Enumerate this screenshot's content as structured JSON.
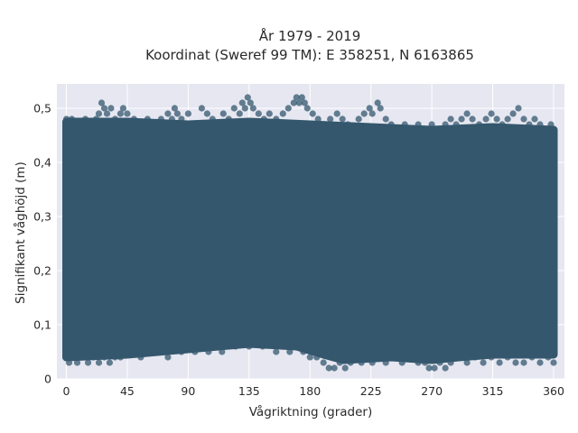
{
  "chart_data": {
    "type": "scatter",
    "title_line1": "År 1979 - 2019",
    "title_line2": "Koordinat (Sweref 99 TM): E 358251, N 6163865",
    "xlabel": "Vågriktning (grader)",
    "ylabel": "Signifikant våghöjd (m)",
    "xlim": [
      -7,
      368
    ],
    "ylim": [
      0,
      0.545
    ],
    "xticks": [
      0,
      45,
      90,
      135,
      180,
      225,
      270,
      315,
      360
    ],
    "xtick_labels": [
      "0",
      "45",
      "90",
      "135",
      "180",
      "225",
      "270",
      "315",
      "360"
    ],
    "yticks": [
      0,
      0.1,
      0.2,
      0.3,
      0.4,
      0.5
    ],
    "ytick_labels": [
      "0",
      "0,1",
      "0,2",
      "0,3",
      "0,4",
      "0,5"
    ],
    "grid": true,
    "colors": {
      "background": "#e6e7f1",
      "grid": "#ffffff",
      "marker": "#34576d"
    },
    "series": [
      {
        "marker_opacity": 0.75,
        "points": [
          [
            0,
            0.48
          ],
          [
            2,
            0.47
          ],
          [
            4,
            0.48
          ],
          [
            6,
            0.46
          ],
          [
            10,
            0.47
          ],
          [
            14,
            0.48
          ],
          [
            18,
            0.47
          ],
          [
            22,
            0.48
          ],
          [
            24,
            0.49
          ],
          [
            26,
            0.51
          ],
          [
            28,
            0.5
          ],
          [
            30,
            0.49
          ],
          [
            33,
            0.5
          ],
          [
            36,
            0.48
          ],
          [
            40,
            0.49
          ],
          [
            42,
            0.5
          ],
          [
            45,
            0.49
          ],
          [
            50,
            0.48
          ],
          [
            55,
            0.47
          ],
          [
            60,
            0.48
          ],
          [
            65,
            0.47
          ],
          [
            70,
            0.48
          ],
          [
            75,
            0.49
          ],
          [
            78,
            0.48
          ],
          [
            80,
            0.5
          ],
          [
            82,
            0.49
          ],
          [
            85,
            0.48
          ],
          [
            90,
            0.49
          ],
          [
            95,
            0.47
          ],
          [
            100,
            0.5
          ],
          [
            104,
            0.49
          ],
          [
            108,
            0.48
          ],
          [
            112,
            0.47
          ],
          [
            116,
            0.49
          ],
          [
            120,
            0.48
          ],
          [
            124,
            0.5
          ],
          [
            128,
            0.49
          ],
          [
            130,
            0.51
          ],
          [
            132,
            0.5
          ],
          [
            134,
            0.52
          ],
          [
            136,
            0.51
          ],
          [
            138,
            0.5
          ],
          [
            142,
            0.49
          ],
          [
            146,
            0.48
          ],
          [
            150,
            0.49
          ],
          [
            155,
            0.48
          ],
          [
            160,
            0.49
          ],
          [
            164,
            0.5
          ],
          [
            168,
            0.51
          ],
          [
            170,
            0.52
          ],
          [
            172,
            0.51
          ],
          [
            174,
            0.52
          ],
          [
            176,
            0.51
          ],
          [
            178,
            0.5
          ],
          [
            182,
            0.49
          ],
          [
            186,
            0.48
          ],
          [
            190,
            0.47
          ],
          [
            195,
            0.48
          ],
          [
            200,
            0.49
          ],
          [
            204,
            0.48
          ],
          [
            208,
            0.47
          ],
          [
            212,
            0.46
          ],
          [
            216,
            0.48
          ],
          [
            220,
            0.49
          ],
          [
            224,
            0.5
          ],
          [
            226,
            0.49
          ],
          [
            230,
            0.51
          ],
          [
            232,
            0.5
          ],
          [
            236,
            0.48
          ],
          [
            240,
            0.47
          ],
          [
            245,
            0.46
          ],
          [
            250,
            0.47
          ],
          [
            255,
            0.46
          ],
          [
            260,
            0.47
          ],
          [
            265,
            0.46
          ],
          [
            270,
            0.47
          ],
          [
            275,
            0.46
          ],
          [
            280,
            0.47
          ],
          [
            284,
            0.48
          ],
          [
            288,
            0.47
          ],
          [
            292,
            0.48
          ],
          [
            296,
            0.49
          ],
          [
            300,
            0.48
          ],
          [
            305,
            0.47
          ],
          [
            310,
            0.48
          ],
          [
            314,
            0.49
          ],
          [
            318,
            0.48
          ],
          [
            322,
            0.47
          ],
          [
            326,
            0.48
          ],
          [
            330,
            0.49
          ],
          [
            334,
            0.5
          ],
          [
            338,
            0.48
          ],
          [
            342,
            0.47
          ],
          [
            346,
            0.48
          ],
          [
            350,
            0.47
          ],
          [
            354,
            0.46
          ],
          [
            358,
            0.47
          ],
          [
            360,
            0.46
          ],
          [
            2,
            0.03
          ],
          [
            5,
            0.04
          ],
          [
            8,
            0.03
          ],
          [
            12,
            0.04
          ],
          [
            16,
            0.03
          ],
          [
            20,
            0.04
          ],
          [
            24,
            0.03
          ],
          [
            28,
            0.04
          ],
          [
            32,
            0.03
          ],
          [
            36,
            0.04
          ],
          [
            40,
            0.04
          ],
          [
            45,
            0.05
          ],
          [
            55,
            0.04
          ],
          [
            65,
            0.05
          ],
          [
            75,
            0.04
          ],
          [
            85,
            0.05
          ],
          [
            95,
            0.05
          ],
          [
            105,
            0.05
          ],
          [
            115,
            0.05
          ],
          [
            125,
            0.06
          ],
          [
            135,
            0.06
          ],
          [
            145,
            0.06
          ],
          [
            155,
            0.05
          ],
          [
            165,
            0.05
          ],
          [
            175,
            0.05
          ],
          [
            180,
            0.04
          ],
          [
            185,
            0.04
          ],
          [
            190,
            0.03
          ],
          [
            194,
            0.02
          ],
          [
            198,
            0.02
          ],
          [
            202,
            0.03
          ],
          [
            206,
            0.02
          ],
          [
            210,
            0.03
          ],
          [
            214,
            0.04
          ],
          [
            218,
            0.03
          ],
          [
            222,
            0.04
          ],
          [
            226,
            0.03
          ],
          [
            230,
            0.04
          ],
          [
            236,
            0.03
          ],
          [
            242,
            0.04
          ],
          [
            248,
            0.03
          ],
          [
            254,
            0.04
          ],
          [
            260,
            0.03
          ],
          [
            265,
            0.03
          ],
          [
            268,
            0.02
          ],
          [
            272,
            0.02
          ],
          [
            276,
            0.03
          ],
          [
            280,
            0.02
          ],
          [
            284,
            0.03
          ],
          [
            290,
            0.04
          ],
          [
            296,
            0.03
          ],
          [
            302,
            0.04
          ],
          [
            308,
            0.03
          ],
          [
            314,
            0.04
          ],
          [
            320,
            0.03
          ],
          [
            326,
            0.04
          ],
          [
            332,
            0.03
          ],
          [
            338,
            0.03
          ],
          [
            344,
            0.04
          ],
          [
            350,
            0.03
          ],
          [
            356,
            0.04
          ],
          [
            360,
            0.03
          ],
          [
            2,
            0.13
          ],
          [
            3,
            0.16
          ],
          [
            8,
            0.12
          ],
          [
            12,
            0.15
          ],
          [
            18,
            0.14
          ],
          [
            30,
            0.1
          ],
          [
            38,
            0.12
          ],
          [
            50,
            0.11
          ],
          [
            60,
            0.13
          ],
          [
            72,
            0.1
          ],
          [
            84,
            0.12
          ],
          [
            98,
            0.14
          ],
          [
            110,
            0.13
          ],
          [
            122,
            0.11
          ],
          [
            150,
            0.08
          ],
          [
            160,
            0.1
          ],
          [
            172,
            0.09
          ],
          [
            188,
            0.07
          ],
          [
            244,
            0.15
          ],
          [
            252,
            0.12
          ],
          [
            262,
            0.08
          ],
          [
            278,
            0.11
          ],
          [
            286,
            0.1
          ],
          [
            298,
            0.14
          ],
          [
            306,
            0.12
          ],
          [
            318,
            0.13
          ],
          [
            330,
            0.11
          ],
          [
            340,
            0.15
          ],
          [
            348,
            0.14
          ],
          [
            352,
            0.16
          ],
          [
            355,
            0.1
          ],
          [
            358,
            0.12
          ]
        ]
      }
    ]
  }
}
